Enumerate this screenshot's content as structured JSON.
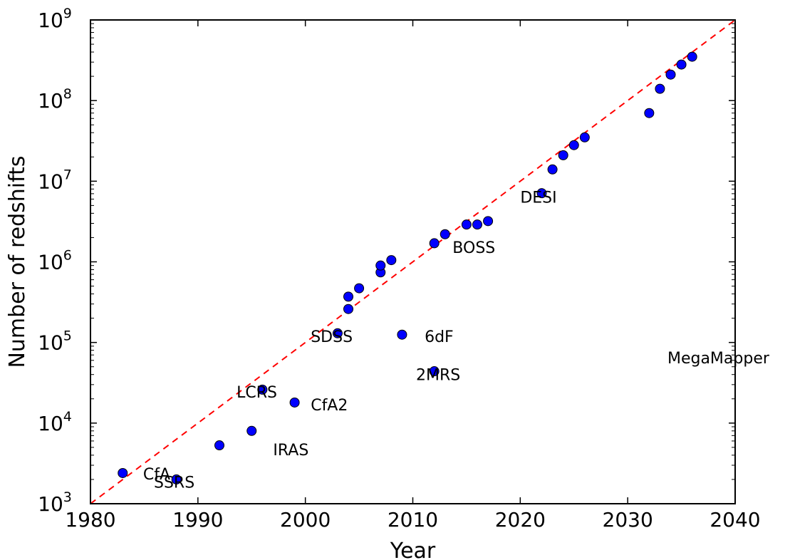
{
  "chart_data": {
    "type": "scatter",
    "xlabel": "Year",
    "ylabel": "Number of redshifts",
    "xlim": [
      1980,
      2040
    ],
    "ylim": [
      1000,
      1000000000
    ],
    "yscale": "log",
    "grid": false,
    "x_ticks": [
      "1980",
      "1990",
      "2000",
      "2010",
      "2020",
      "2030",
      "2040"
    ],
    "y_ticks": [
      {
        "base": "10",
        "exp": "3"
      },
      {
        "base": "10",
        "exp": "4"
      },
      {
        "base": "10",
        "exp": "5"
      },
      {
        "base": "10",
        "exp": "6"
      },
      {
        "base": "10",
        "exp": "7"
      },
      {
        "base": "10",
        "exp": "8"
      },
      {
        "base": "10",
        "exp": "9"
      }
    ],
    "series": [
      {
        "color": "#0000ff",
        "points": [
          {
            "x": 1983,
            "y": 2400
          },
          {
            "x": 1988,
            "y": 2000
          },
          {
            "x": 1992,
            "y": 5300
          },
          {
            "x": 1995,
            "y": 8000
          },
          {
            "x": 1996,
            "y": 26000
          },
          {
            "x": 1999,
            "y": 18000
          },
          {
            "x": 2003,
            "y": 130000
          },
          {
            "x": 2004,
            "y": 260000
          },
          {
            "x": 2004,
            "y": 370000
          },
          {
            "x": 2005,
            "y": 470000
          },
          {
            "x": 2007,
            "y": 740000
          },
          {
            "x": 2007,
            "y": 900000
          },
          {
            "x": 2008,
            "y": 1050000
          },
          {
            "x": 2009,
            "y": 125000
          },
          {
            "x": 2012,
            "y": 44000
          },
          {
            "x": 2012,
            "y": 1700000
          },
          {
            "x": 2013,
            "y": 2200000
          },
          {
            "x": 2015,
            "y": 2900000
          },
          {
            "x": 2016,
            "y": 2900000
          },
          {
            "x": 2017,
            "y": 3200000
          },
          {
            "x": 2022,
            "y": 7100000
          },
          {
            "x": 2023,
            "y": 14000000
          },
          {
            "x": 2024,
            "y": 21000000
          },
          {
            "x": 2025,
            "y": 28000000
          },
          {
            "x": 2026,
            "y": 35000000
          },
          {
            "x": 2032,
            "y": 70000000
          },
          {
            "x": 2033,
            "y": 140000000
          },
          {
            "x": 2034,
            "y": 210000000
          },
          {
            "x": 2035,
            "y": 280000000
          },
          {
            "x": 2036,
            "y": 350000000
          }
        ]
      }
    ],
    "trend_line": {
      "color": "#ff0000",
      "style": "dashed",
      "from": {
        "x": 1980,
        "y": 1000
      },
      "to": {
        "x": 2040,
        "y": 1000000000
      }
    },
    "annotations": [
      {
        "text": "CfA",
        "x": 1984.9,
        "y": 2000
      },
      {
        "text": "SSRS",
        "x": 1985.9,
        "y": 1580
      },
      {
        "text": "IRAS",
        "x": 1997.0,
        "y": 4000
      },
      {
        "text": "LCRS",
        "x": 1993.6,
        "y": 20800
      },
      {
        "text": "CfA2",
        "x": 2000.5,
        "y": 14400
      },
      {
        "text": "SDSS",
        "x": 2000.5,
        "y": 101000
      },
      {
        "text": "6dF",
        "x": 2011.1,
        "y": 101000
      },
      {
        "text": "2MRS",
        "x": 2010.3,
        "y": 34300
      },
      {
        "text": "BOSS",
        "x": 2013.7,
        "y": 1290000
      },
      {
        "text": "DESI",
        "x": 2020.0,
        "y": 5400000
      },
      {
        "text": "MegaMapper",
        "x": 2033.7,
        "y": 55000
      }
    ]
  }
}
